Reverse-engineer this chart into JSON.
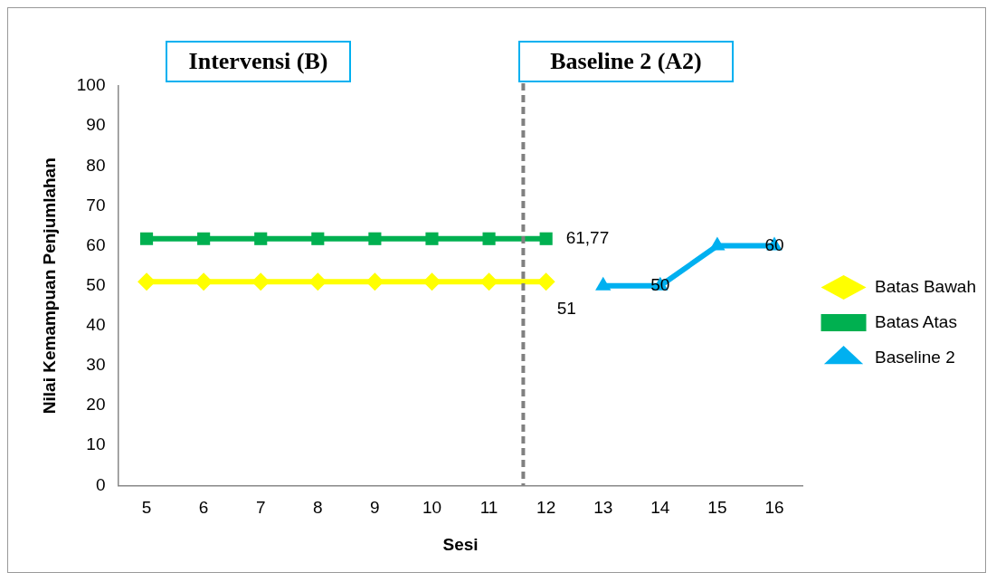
{
  "chart_data": {
    "type": "line",
    "xlabel": "Sesi",
    "ylabel": "Nilai Kemampuan Penjumlahan",
    "x": [
      5,
      6,
      7,
      8,
      9,
      10,
      11,
      12,
      13,
      14,
      15,
      16
    ],
    "xlim": [
      4.5,
      16.5
    ],
    "xticks": [
      5,
      6,
      7,
      8,
      9,
      10,
      11,
      12,
      13,
      14,
      15,
      16
    ],
    "ylim": [
      0,
      100
    ],
    "yticks": [
      0,
      10,
      20,
      30,
      40,
      50,
      60,
      70,
      80,
      90,
      100
    ],
    "grid": false,
    "legend": "right",
    "annotations": [
      "Intervensi (B)",
      "Baseline 2 (A2)"
    ],
    "ref_lines": [
      {
        "axis": "x",
        "value": 11.6,
        "color": "#808080",
        "line_style": "dashed"
      }
    ],
    "series": [
      {
        "name": "Batas Bawah",
        "color": "#ffff00",
        "marker": "diamond",
        "values": [
          51,
          51,
          51,
          51,
          51,
          51,
          51,
          51,
          null,
          null,
          null,
          null
        ],
        "value_labels": [
          null,
          null,
          null,
          null,
          null,
          null,
          null,
          "51",
          null,
          null,
          null,
          null
        ]
      },
      {
        "name": "Batas Atas",
        "color": "#00b050",
        "marker": "square",
        "values": [
          61.77,
          61.77,
          61.77,
          61.77,
          61.77,
          61.77,
          61.77,
          61.77,
          null,
          null,
          null,
          null
        ],
        "value_labels": [
          null,
          null,
          null,
          null,
          null,
          null,
          null,
          "61,77",
          null,
          null,
          null,
          null
        ]
      },
      {
        "name": "Baseline 2",
        "color": "#00b0f0",
        "marker": "triangle",
        "values": [
          null,
          null,
          null,
          null,
          null,
          null,
          null,
          null,
          50,
          50,
          60,
          60
        ],
        "value_labels": [
          null,
          null,
          null,
          null,
          null,
          null,
          null,
          null,
          null,
          "50",
          null,
          "60"
        ]
      }
    ]
  }
}
